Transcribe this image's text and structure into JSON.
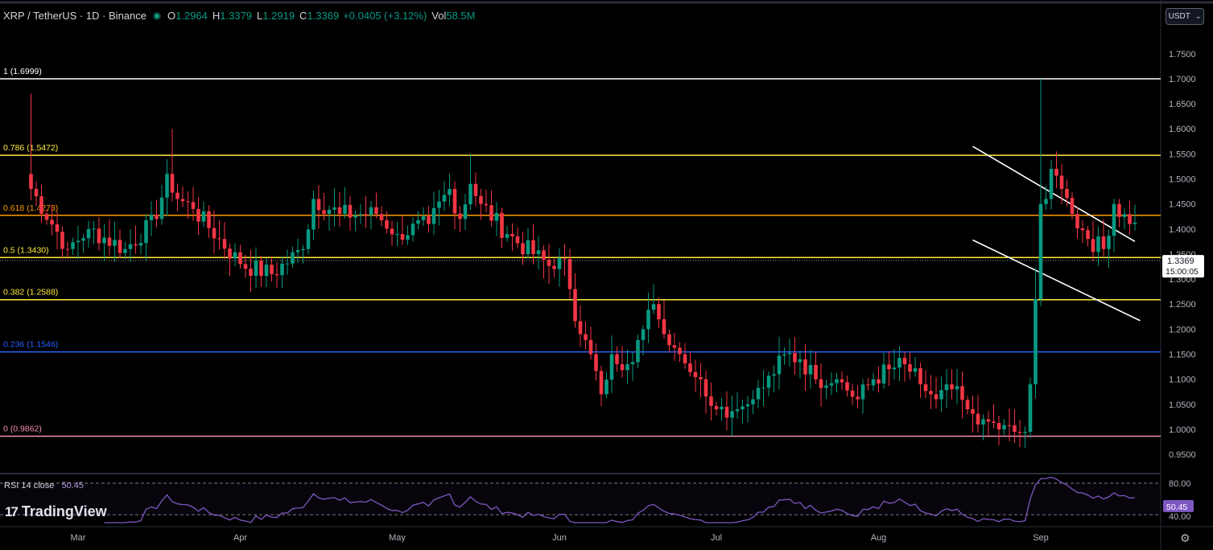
{
  "header": {
    "symbol": "XRP / TetherUS · 1D · Binance",
    "open_label": "O",
    "open": "1.2964",
    "high_label": "H",
    "high": "1.3379",
    "low_label": "L",
    "low": "1.2919",
    "close_label": "C",
    "close": "1.3369",
    "change": "+0.0405 (+3.12%)",
    "vol_label": "Vol",
    "vol": "58.5M"
  },
  "currency_select": {
    "label": "USDT",
    "icon": "chevron-down-icon"
  },
  "price_tag": {
    "price": "1.3369",
    "countdown": "15:00:05"
  },
  "rsi": {
    "label": "RSI",
    "params": "14 close",
    "value": "50.45",
    "upper": "80.00",
    "lower": "40.00"
  },
  "logo": {
    "text": "TradingView",
    "icon": "tradingview-logo-icon"
  },
  "settings_icon": "gear-icon",
  "colors": {
    "up": "#089981",
    "down": "#f23645",
    "rsi": "#7e57c2",
    "fib_1": "#ffffff",
    "fib_786": "#ffeb3b",
    "fib_618": "#ff9800",
    "fib_5": "#ffeb3b",
    "fib_382": "#ffeb3b",
    "fib_236": "#2962ff",
    "fib_0": "#f48fb1"
  },
  "chart_data": {
    "type": "candlestick",
    "title": "XRP / TetherUS · 1D · Binance",
    "x_ticks": [
      "Mar",
      "Apr",
      "May",
      "Jun",
      "Jul",
      "Aug",
      "Sep"
    ],
    "y_ticks": [
      "1.7500",
      "1.7000",
      "1.6500",
      "1.6000",
      "1.5500",
      "1.5000",
      "1.4500",
      "1.4000",
      "1.3500",
      "1.3000",
      "1.2500",
      "1.2000",
      "1.1500",
      "1.1000",
      "1.0500",
      "1.0000",
      "0.9500"
    ],
    "ylim": [
      0.918,
      1.785
    ],
    "fib_levels": [
      {
        "label": "1 (1.6999)",
        "price": 1.6999,
        "color": "#ffffff"
      },
      {
        "label": "0.786 (1.5472)",
        "price": 1.5472,
        "color": "#ffeb3b"
      },
      {
        "label": "0.618 (1.4273)",
        "price": 1.4273,
        "color": "#ff9800"
      },
      {
        "label": "0.5 (1.3430)",
        "price": 1.343,
        "color": "#ffeb3b"
      },
      {
        "label": "0.382 (1.2588)",
        "price": 1.2588,
        "color": "#ffeb3b"
      },
      {
        "label": "0.236 (1.1546)",
        "price": 1.1546,
        "color": "#2962ff"
      },
      {
        "label": "0 (0.9862)",
        "price": 0.9862,
        "color": "#f48fb1"
      }
    ],
    "channel": [
      {
        "from": [
          "Aug 19",
          1.565
        ],
        "to": [
          "Sep 19",
          1.375
        ]
      },
      {
        "from": [
          "Aug 19",
          1.378
        ],
        "to": [
          "Sep 20",
          1.217
        ]
      }
    ],
    "keypoints": [
      {
        "date": "Feb 20",
        "close": 1.48
      },
      {
        "date": "Feb 27",
        "close": 1.36
      },
      {
        "date": "Mar 3",
        "close": 1.4
      },
      {
        "date": "Mar 10",
        "close": 1.36
      },
      {
        "date": "Mar 16",
        "close": 1.42
      },
      {
        "date": "Mar 18",
        "close": 1.51
      },
      {
        "date": "Mar 20",
        "close": 1.46
      },
      {
        "date": "Mar 23",
        "close": 1.44
      },
      {
        "date": "Mar 28",
        "close": 1.38
      },
      {
        "date": "Apr 1",
        "close": 1.33
      },
      {
        "date": "Apr 7",
        "close": 1.31
      },
      {
        "date": "Apr 13",
        "close": 1.36
      },
      {
        "date": "Apr 15",
        "close": 1.46
      },
      {
        "date": "Apr 20",
        "close": 1.43
      },
      {
        "date": "Apr 27",
        "close": 1.43
      },
      {
        "date": "May 1",
        "close": 1.39
      },
      {
        "date": "May 7",
        "close": 1.41
      },
      {
        "date": "May 11",
        "close": 1.48
      },
      {
        "date": "May 13",
        "close": 1.42
      },
      {
        "date": "May 15",
        "close": 1.49
      },
      {
        "date": "May 17",
        "close": 1.45
      },
      {
        "date": "May 22",
        "close": 1.39
      },
      {
        "date": "May 27",
        "close": 1.35
      },
      {
        "date": "May 31",
        "close": 1.32
      },
      {
        "date": "Jun 2",
        "close": 1.34
      },
      {
        "date": "Jun 3",
        "close": 1.28
      },
      {
        "date": "Jun 5",
        "close": 1.19
      },
      {
        "date": "Jun 7",
        "close": 1.15
      },
      {
        "date": "Jun 9",
        "close": 1.07
      },
      {
        "date": "Jun 11",
        "close": 1.15
      },
      {
        "date": "Jun 14",
        "close": 1.13
      },
      {
        "date": "Jun 17",
        "close": 1.2
      },
      {
        "date": "Jun 19",
        "close": 1.25
      },
      {
        "date": "Jun 21",
        "close": 1.19
      },
      {
        "date": "Jun 24",
        "close": 1.15
      },
      {
        "date": "Jun 28",
        "close": 1.1
      },
      {
        "date": "Jul 1",
        "close": 1.04
      },
      {
        "date": "Jul 5",
        "close": 1.04
      },
      {
        "date": "Jul 8",
        "close": 1.06
      },
      {
        "date": "Jul 12",
        "close": 1.11
      },
      {
        "date": "Jul 14",
        "close": 1.15
      },
      {
        "date": "Jul 17",
        "close": 1.14
      },
      {
        "date": "Jul 20",
        "close": 1.1
      },
      {
        "date": "Jul 24",
        "close": 1.1
      },
      {
        "date": "Jul 28",
        "close": 1.06
      },
      {
        "date": "Jul 31",
        "close": 1.1
      },
      {
        "date": "Aug 3",
        "close": 1.12
      },
      {
        "date": "Aug 6",
        "close": 1.13
      },
      {
        "date": "Aug 9",
        "close": 1.09
      },
      {
        "date": "Aug 12",
        "close": 1.06
      },
      {
        "date": "Aug 15",
        "close": 1.08
      },
      {
        "date": "Aug 18",
        "close": 1.04
      },
      {
        "date": "Aug 21",
        "close": 1.02
      },
      {
        "date": "Aug 24",
        "close": 1.0
      },
      {
        "date": "Aug 27",
        "close": 0.995
      },
      {
        "date": "Aug 29",
        "close": 0.995
      },
      {
        "date": "Aug 30",
        "close": 1.09
      },
      {
        "date": "Aug 31",
        "close": 1.26
      },
      {
        "date": "Sep 1",
        "close": 1.45
      },
      {
        "date": "Sep 2",
        "close": 1.46
      },
      {
        "date": "Sep 3",
        "close": 1.52
      },
      {
        "date": "Sep 5",
        "close": 1.48
      },
      {
        "date": "Sep 7",
        "close": 1.43
      },
      {
        "date": "Sep 10",
        "close": 1.38
      },
      {
        "date": "Sep 13",
        "close": 1.36
      },
      {
        "date": "Sep 15",
        "close": 1.45
      },
      {
        "date": "Sep 18",
        "close": 1.41
      },
      {
        "date": "Sep 21",
        "close": 1.39
      },
      {
        "date": "Sep 23",
        "close": 1.35
      },
      {
        "date": "Sep 25",
        "close": 1.37
      },
      {
        "date": "Sep 26",
        "close": 1.43
      },
      {
        "date": "Sep 28",
        "close": 1.28
      },
      {
        "date": "Sep 30",
        "close": 1.3
      },
      {
        "date": "Oct 1",
        "close": 1.3369
      }
    ]
  }
}
